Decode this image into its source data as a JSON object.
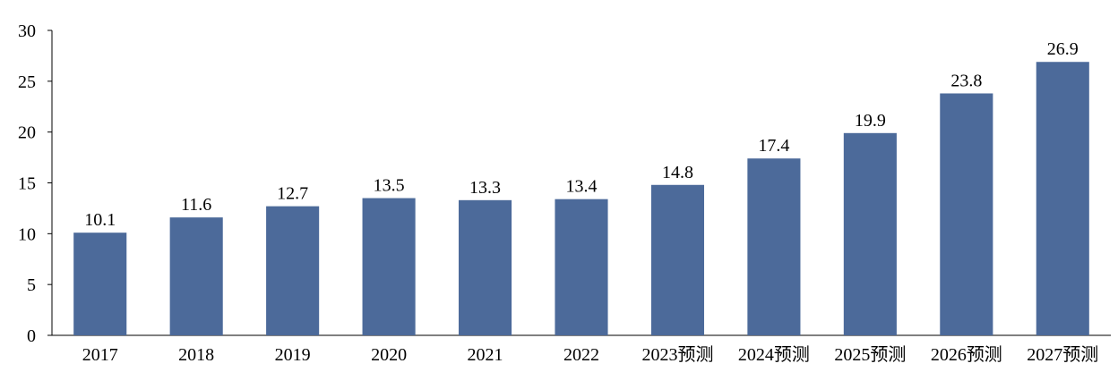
{
  "chart_data": {
    "type": "bar",
    "categories": [
      "2017",
      "2018",
      "2019",
      "2020",
      "2021",
      "2022",
      "2023预测",
      "2024预测",
      "2025预测",
      "2026预测",
      "2027预测"
    ],
    "values": [
      10.1,
      11.6,
      12.7,
      13.5,
      13.3,
      13.4,
      14.8,
      17.4,
      19.9,
      23.8,
      26.9
    ],
    "value_labels": [
      "10.1",
      "11.6",
      "12.7",
      "13.5",
      "13.3",
      "13.4",
      "14.8",
      "17.4",
      "19.9",
      "23.8",
      "26.9"
    ],
    "title": "",
    "xlabel": "",
    "ylabel": "",
    "ylim": [
      0,
      30
    ],
    "yticks": [
      "0",
      "5",
      "10",
      "15",
      "20",
      "25",
      "30"
    ],
    "grid": false,
    "legend": "none",
    "bar_color": "#4C6A9A"
  }
}
